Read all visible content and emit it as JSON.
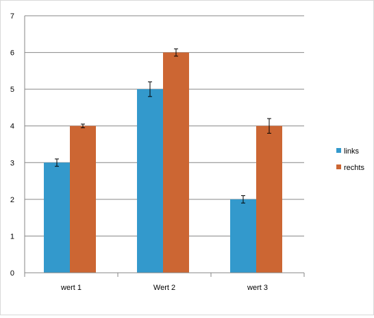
{
  "chart_data": {
    "type": "bar",
    "categories": [
      "wert 1",
      "Wert 2",
      "wert 3"
    ],
    "series": [
      {
        "name": "links",
        "color": "#3399cc",
        "values": [
          3,
          5,
          2
        ],
        "errors": [
          0.1,
          0.2,
          0.1
        ]
      },
      {
        "name": "rechts",
        "color": "#cc6633",
        "values": [
          4,
          6,
          4
        ],
        "errors": [
          0.05,
          0.1,
          0.2
        ]
      }
    ],
    "ylim": [
      0,
      7
    ],
    "yticks": [
      0,
      1,
      2,
      3,
      4,
      5,
      6,
      7
    ],
    "grid": true,
    "legend": "right",
    "title": "",
    "xlabel": "",
    "ylabel": ""
  }
}
